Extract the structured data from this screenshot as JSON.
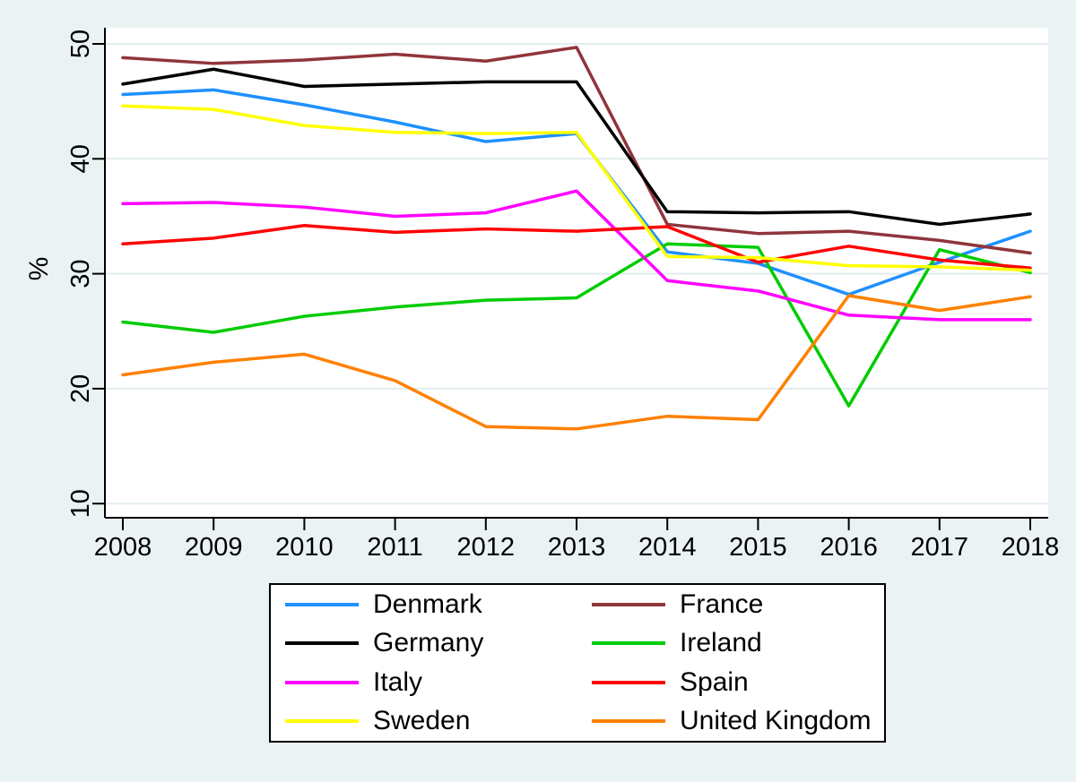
{
  "chart_data": {
    "type": "line",
    "title": "",
    "xlabel": "",
    "ylabel": "%",
    "x": [
      2008,
      2009,
      2010,
      2011,
      2012,
      2013,
      2014,
      2015,
      2016,
      2017,
      2018
    ],
    "y_ticks": [
      10,
      20,
      30,
      40,
      50
    ],
    "y_range": [
      8.6,
      51.4
    ],
    "grid": true,
    "legend_position": "bottom-box",
    "series": [
      {
        "name": "Denmark",
        "color": "#1E90FF",
        "values": [
          45.6,
          46.0,
          44.7,
          43.2,
          41.5,
          42.2,
          31.9,
          30.9,
          28.2,
          31.0,
          33.7
        ]
      },
      {
        "name": "France",
        "color": "#90353B",
        "values": [
          48.8,
          48.3,
          48.6,
          49.1,
          48.5,
          49.7,
          34.3,
          33.5,
          33.7,
          32.9,
          31.8
        ]
      },
      {
        "name": "Germany",
        "color": "#000000",
        "values": [
          46.5,
          47.8,
          46.3,
          46.5,
          46.7,
          46.7,
          35.4,
          35.3,
          35.4,
          34.3,
          35.2
        ]
      },
      {
        "name": "Ireland",
        "color": "#00CC00",
        "values": [
          25.8,
          24.9,
          26.3,
          27.1,
          27.7,
          27.9,
          32.6,
          32.3,
          18.5,
          32.1,
          30.1
        ]
      },
      {
        "name": "Italy",
        "color": "#FF00FF",
        "values": [
          36.1,
          36.2,
          35.8,
          35.0,
          35.3,
          37.2,
          29.4,
          28.5,
          26.4,
          26.0,
          26.0
        ]
      },
      {
        "name": "Spain",
        "color": "#FF0000",
        "values": [
          32.6,
          33.1,
          34.2,
          33.6,
          33.9,
          33.7,
          34.1,
          31.0,
          32.4,
          31.2,
          30.5
        ]
      },
      {
        "name": "Sweden",
        "color": "#FFFF00",
        "values": [
          44.6,
          44.3,
          42.9,
          42.3,
          42.2,
          42.3,
          31.5,
          31.4,
          30.7,
          30.6,
          30.3
        ]
      },
      {
        "name": "United Kingdom",
        "color": "#FF8000",
        "values": [
          21.2,
          22.3,
          23.0,
          20.7,
          16.7,
          16.5,
          17.6,
          17.3,
          28.1,
          26.8,
          28.0
        ]
      }
    ]
  },
  "colors": {
    "background": "#EAF2F3",
    "plot_background": "#FFFFFF",
    "gridline": "#E3EDEF",
    "axis": "#000000",
    "tick_label": "#000000",
    "legend_background": "#FFFFFF",
    "legend_border": "#000000"
  }
}
